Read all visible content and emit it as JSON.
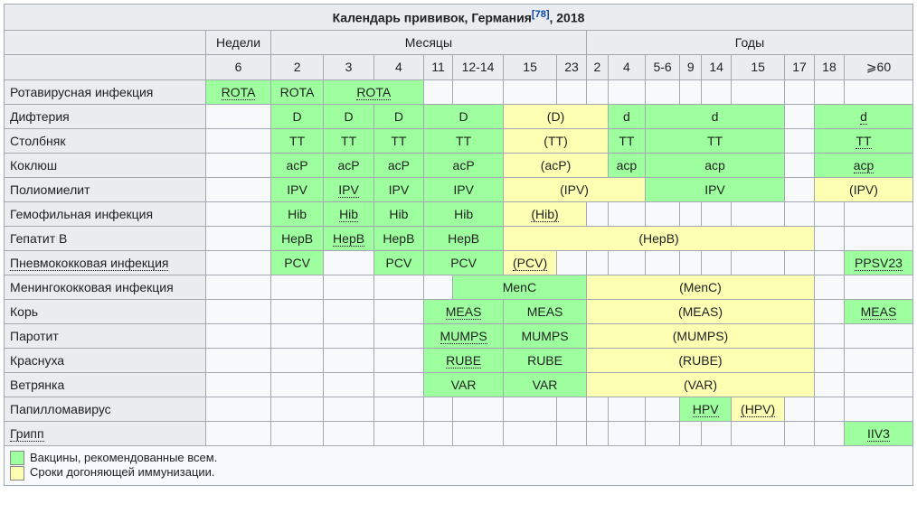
{
  "title": {
    "prefix": "Календарь прививок, Германия",
    "ref": "[78]",
    "ref_link": true,
    "suffix": ", 2018"
  },
  "headers": {
    "weeks": "Недели",
    "months": "Месяцы",
    "years": "Годы",
    "week_cols": [
      "6"
    ],
    "month_cols": [
      "2",
      "3",
      "4",
      "11",
      "12-14",
      "15",
      "23"
    ],
    "year_cols": [
      "2",
      "4",
      "5-6",
      "9",
      "14",
      "15",
      "17",
      "18",
      "⩾60"
    ]
  },
  "colors": {
    "green": "#9EFF9E",
    "yellow": "#FDFFB3",
    "header_bg": "#eaecf0",
    "table_bg": "#f8f9fa",
    "border": "#a2a9b1"
  },
  "legend": {
    "green": "Вакцины, рекомендованные всем.",
    "yellow": "Сроки догоняющей иммунизации."
  },
  "rows": [
    {
      "label": "Ротавирусная инфекция",
      "label_dotted": false,
      "cells": [
        {
          "text": "ROTA",
          "cls": "c-green",
          "span": 1,
          "dotted": true
        },
        {
          "text": "ROTA",
          "cls": "c-green",
          "span": 1
        },
        {
          "text": "ROTA",
          "cls": "c-green",
          "span": 2,
          "dotted": true
        },
        {
          "text": "",
          "cls": "",
          "span": 1
        },
        {
          "text": "",
          "cls": "",
          "span": 1
        },
        {
          "text": "",
          "cls": "",
          "span": 1
        },
        {
          "text": "",
          "cls": "",
          "span": 1
        },
        {
          "text": "",
          "cls": "",
          "span": 1
        },
        {
          "text": "",
          "cls": "",
          "span": 1
        },
        {
          "text": "",
          "cls": "",
          "span": 1
        },
        {
          "text": "",
          "cls": "",
          "span": 1
        },
        {
          "text": "",
          "cls": "",
          "span": 1
        },
        {
          "text": "",
          "cls": "",
          "span": 1
        },
        {
          "text": "",
          "cls": "",
          "span": 1
        },
        {
          "text": "",
          "cls": "",
          "span": 1
        },
        {
          "text": "",
          "cls": "",
          "span": 1
        }
      ]
    },
    {
      "label": "Дифтерия",
      "label_dotted": false,
      "cells": [
        {
          "text": "",
          "cls": "",
          "span": 1
        },
        {
          "text": "D",
          "cls": "c-green",
          "span": 1
        },
        {
          "text": "D",
          "cls": "c-green",
          "span": 1
        },
        {
          "text": "D",
          "cls": "c-green",
          "span": 1
        },
        {
          "text": "D",
          "cls": "c-green",
          "span": 2
        },
        {
          "text": "(D)",
          "cls": "c-yellow",
          "span": 3
        },
        {
          "text": "d",
          "cls": "c-green",
          "span": 1
        },
        {
          "text": "d",
          "cls": "c-green",
          "span": 4
        },
        {
          "text": "",
          "cls": "",
          "span": 1
        },
        {
          "text": "d",
          "cls": "c-green",
          "span": 2,
          "dotted": true
        }
      ]
    },
    {
      "label": "Столбняк",
      "label_dotted": false,
      "cells": [
        {
          "text": "",
          "cls": "",
          "span": 1
        },
        {
          "text": "TT",
          "cls": "c-green",
          "span": 1
        },
        {
          "text": "TT",
          "cls": "c-green",
          "span": 1
        },
        {
          "text": "TT",
          "cls": "c-green",
          "span": 1
        },
        {
          "text": "TT",
          "cls": "c-green",
          "span": 2
        },
        {
          "text": "(TT)",
          "cls": "c-yellow",
          "span": 3
        },
        {
          "text": "TT",
          "cls": "c-green",
          "span": 1
        },
        {
          "text": "TT",
          "cls": "c-green",
          "span": 4
        },
        {
          "text": "",
          "cls": "",
          "span": 1
        },
        {
          "text": "TT",
          "cls": "c-green",
          "span": 2,
          "dotted": true
        }
      ]
    },
    {
      "label": "Коклюш",
      "label_dotted": false,
      "cells": [
        {
          "text": "",
          "cls": "",
          "span": 1
        },
        {
          "text": "acP",
          "cls": "c-green",
          "span": 1
        },
        {
          "text": "acP",
          "cls": "c-green",
          "span": 1
        },
        {
          "text": "acP",
          "cls": "c-green",
          "span": 1
        },
        {
          "text": "acP",
          "cls": "c-green",
          "span": 2
        },
        {
          "text": "(acP)",
          "cls": "c-yellow",
          "span": 3
        },
        {
          "text": "acp",
          "cls": "c-green",
          "span": 1
        },
        {
          "text": "acp",
          "cls": "c-green",
          "span": 4
        },
        {
          "text": "",
          "cls": "",
          "span": 1
        },
        {
          "text": "acp",
          "cls": "c-green",
          "span": 2,
          "dotted": true
        }
      ]
    },
    {
      "label": "Полиомиелит",
      "label_dotted": false,
      "cells": [
        {
          "text": "",
          "cls": "",
          "span": 1
        },
        {
          "text": "IPV",
          "cls": "c-green",
          "span": 1
        },
        {
          "text": "IPV",
          "cls": "c-green",
          "span": 1,
          "dotted": true
        },
        {
          "text": "IPV",
          "cls": "c-green",
          "span": 1
        },
        {
          "text": "IPV",
          "cls": "c-green",
          "span": 2
        },
        {
          "text": "(IPV)",
          "cls": "c-yellow",
          "span": 4
        },
        {
          "text": "IPV",
          "cls": "c-green",
          "span": 4
        },
        {
          "text": "",
          "cls": "",
          "span": 1
        },
        {
          "text": "(IPV)",
          "cls": "c-yellow",
          "span": 2
        }
      ]
    },
    {
      "label": "Гемофильная инфекция",
      "label_dotted": false,
      "cells": [
        {
          "text": "",
          "cls": "",
          "span": 1
        },
        {
          "text": "Hib",
          "cls": "c-green",
          "span": 1
        },
        {
          "text": "Hib",
          "cls": "c-green",
          "span": 1,
          "dotted": true
        },
        {
          "text": "Hib",
          "cls": "c-green",
          "span": 1
        },
        {
          "text": "Hib",
          "cls": "c-green",
          "span": 2
        },
        {
          "text": "(Hib)",
          "cls": "c-yellow",
          "span": 2,
          "dotted": true
        },
        {
          "text": "",
          "cls": "",
          "span": 1
        },
        {
          "text": "",
          "cls": "",
          "span": 1
        },
        {
          "text": "",
          "cls": "",
          "span": 1
        },
        {
          "text": "",
          "cls": "",
          "span": 1
        },
        {
          "text": "",
          "cls": "",
          "span": 1
        },
        {
          "text": "",
          "cls": "",
          "span": 1
        },
        {
          "text": "",
          "cls": "",
          "span": 1
        },
        {
          "text": "",
          "cls": "",
          "span": 1
        },
        {
          "text": "",
          "cls": "",
          "span": 1
        }
      ]
    },
    {
      "label": "Гепатит B",
      "label_dotted": false,
      "cells": [
        {
          "text": "",
          "cls": "",
          "span": 1
        },
        {
          "text": "HepB",
          "cls": "c-green",
          "span": 1
        },
        {
          "text": "HepB",
          "cls": "c-green",
          "span": 1,
          "dotted": true
        },
        {
          "text": "HepB",
          "cls": "c-green",
          "span": 1
        },
        {
          "text": "HepB",
          "cls": "c-green",
          "span": 2
        },
        {
          "text": "(HepB)",
          "cls": "c-yellow",
          "span": 9
        },
        {
          "text": "",
          "cls": "",
          "span": 1
        },
        {
          "text": "",
          "cls": "",
          "span": 1
        }
      ]
    },
    {
      "label": "Пневмококковая инфекция",
      "label_dotted": true,
      "cells": [
        {
          "text": "",
          "cls": "",
          "span": 1
        },
        {
          "text": "PCV",
          "cls": "c-green",
          "span": 1
        },
        {
          "text": "",
          "cls": "",
          "span": 1
        },
        {
          "text": "PCV",
          "cls": "c-green",
          "span": 1
        },
        {
          "text": "PCV",
          "cls": "c-green",
          "span": 2
        },
        {
          "text": "(PCV)",
          "cls": "c-yellow",
          "span": 1,
          "dotted": true
        },
        {
          "text": "",
          "cls": "",
          "span": 1
        },
        {
          "text": "",
          "cls": "",
          "span": 1
        },
        {
          "text": "",
          "cls": "",
          "span": 1
        },
        {
          "text": "",
          "cls": "",
          "span": 1
        },
        {
          "text": "",
          "cls": "",
          "span": 1
        },
        {
          "text": "",
          "cls": "",
          "span": 1
        },
        {
          "text": "",
          "cls": "",
          "span": 1
        },
        {
          "text": "",
          "cls": "",
          "span": 1
        },
        {
          "text": "",
          "cls": "",
          "span": 1
        },
        {
          "text": "PPSV23",
          "cls": "c-green",
          "span": 1,
          "dotted": true
        }
      ]
    },
    {
      "label": "Менингококковая инфекция",
      "label_dotted": false,
      "cells": [
        {
          "text": "",
          "cls": "",
          "span": 1
        },
        {
          "text": "",
          "cls": "",
          "span": 1
        },
        {
          "text": "",
          "cls": "",
          "span": 1
        },
        {
          "text": "",
          "cls": "",
          "span": 1
        },
        {
          "text": "",
          "cls": "",
          "span": 1
        },
        {
          "text": "MenC",
          "cls": "c-green",
          "span": 3
        },
        {
          "text": "(MenC)",
          "cls": "c-yellow",
          "span": 7
        },
        {
          "text": "",
          "cls": "",
          "span": 1
        },
        {
          "text": "",
          "cls": "",
          "span": 1
        }
      ]
    },
    {
      "label": "Корь",
      "label_dotted": false,
      "cells": [
        {
          "text": "",
          "cls": "",
          "span": 1
        },
        {
          "text": "",
          "cls": "",
          "span": 1
        },
        {
          "text": "",
          "cls": "",
          "span": 1
        },
        {
          "text": "",
          "cls": "",
          "span": 1
        },
        {
          "text": "MEAS",
          "cls": "c-green",
          "span": 2,
          "dotted": true
        },
        {
          "text": "MEAS",
          "cls": "c-green",
          "span": 2
        },
        {
          "text": "(MEAS)",
          "cls": "c-yellow",
          "span": 7
        },
        {
          "text": "",
          "cls": "",
          "span": 1
        },
        {
          "text": "MEAS",
          "cls": "c-green",
          "span": 1,
          "dotted": true
        }
      ]
    },
    {
      "label": "Паротит",
      "label_dotted": false,
      "cells": [
        {
          "text": "",
          "cls": "",
          "span": 1
        },
        {
          "text": "",
          "cls": "",
          "span": 1
        },
        {
          "text": "",
          "cls": "",
          "span": 1
        },
        {
          "text": "",
          "cls": "",
          "span": 1
        },
        {
          "text": "MUMPS",
          "cls": "c-green",
          "span": 2,
          "dotted": true
        },
        {
          "text": "MUMPS",
          "cls": "c-green",
          "span": 2
        },
        {
          "text": "(MUMPS)",
          "cls": "c-yellow",
          "span": 7
        },
        {
          "text": "",
          "cls": "",
          "span": 1
        },
        {
          "text": "",
          "cls": "",
          "span": 1
        }
      ]
    },
    {
      "label": "Краснуха",
      "label_dotted": false,
      "cells": [
        {
          "text": "",
          "cls": "",
          "span": 1
        },
        {
          "text": "",
          "cls": "",
          "span": 1
        },
        {
          "text": "",
          "cls": "",
          "span": 1
        },
        {
          "text": "",
          "cls": "",
          "span": 1
        },
        {
          "text": "RUBE",
          "cls": "c-green",
          "span": 2,
          "dotted": true
        },
        {
          "text": "RUBE",
          "cls": "c-green",
          "span": 2
        },
        {
          "text": "(RUBE)",
          "cls": "c-yellow",
          "span": 7
        },
        {
          "text": "",
          "cls": "",
          "span": 1
        },
        {
          "text": "",
          "cls": "",
          "span": 1
        }
      ]
    },
    {
      "label": "Ветрянка",
      "label_dotted": false,
      "cells": [
        {
          "text": "",
          "cls": "",
          "span": 1
        },
        {
          "text": "",
          "cls": "",
          "span": 1
        },
        {
          "text": "",
          "cls": "",
          "span": 1
        },
        {
          "text": "",
          "cls": "",
          "span": 1
        },
        {
          "text": "VAR",
          "cls": "c-green",
          "span": 2
        },
        {
          "text": "VAR",
          "cls": "c-green",
          "span": 2
        },
        {
          "text": "(VAR)",
          "cls": "c-yellow",
          "span": 7
        },
        {
          "text": "",
          "cls": "",
          "span": 1
        },
        {
          "text": "",
          "cls": "",
          "span": 1
        }
      ]
    },
    {
      "label": "Папилломавирус",
      "label_dotted": false,
      "cells": [
        {
          "text": "",
          "cls": "",
          "span": 1
        },
        {
          "text": "",
          "cls": "",
          "span": 1
        },
        {
          "text": "",
          "cls": "",
          "span": 1
        },
        {
          "text": "",
          "cls": "",
          "span": 1
        },
        {
          "text": "",
          "cls": "",
          "span": 1
        },
        {
          "text": "",
          "cls": "",
          "span": 1
        },
        {
          "text": "",
          "cls": "",
          "span": 1
        },
        {
          "text": "",
          "cls": "",
          "span": 1
        },
        {
          "text": "",
          "cls": "",
          "span": 1
        },
        {
          "text": "",
          "cls": "",
          "span": 1
        },
        {
          "text": "",
          "cls": "",
          "span": 1
        },
        {
          "text": "HPV",
          "cls": "c-green",
          "span": 2,
          "dotted": true
        },
        {
          "text": "(HPV)",
          "cls": "c-yellow",
          "span": 1,
          "dotted": true
        },
        {
          "text": "",
          "cls": "",
          "span": 1
        },
        {
          "text": "",
          "cls": "",
          "span": 1
        },
        {
          "text": "",
          "cls": "",
          "span": 1
        }
      ]
    },
    {
      "label": "Грипп",
      "label_dotted": true,
      "cells": [
        {
          "text": "",
          "cls": "",
          "span": 1
        },
        {
          "text": "",
          "cls": "",
          "span": 1
        },
        {
          "text": "",
          "cls": "",
          "span": 1
        },
        {
          "text": "",
          "cls": "",
          "span": 1
        },
        {
          "text": "",
          "cls": "",
          "span": 1
        },
        {
          "text": "",
          "cls": "",
          "span": 1
        },
        {
          "text": "",
          "cls": "",
          "span": 1
        },
        {
          "text": "",
          "cls": "",
          "span": 1
        },
        {
          "text": "",
          "cls": "",
          "span": 1
        },
        {
          "text": "",
          "cls": "",
          "span": 1
        },
        {
          "text": "",
          "cls": "",
          "span": 1
        },
        {
          "text": "",
          "cls": "",
          "span": 1
        },
        {
          "text": "",
          "cls": "",
          "span": 1
        },
        {
          "text": "",
          "cls": "",
          "span": 1
        },
        {
          "text": "",
          "cls": "",
          "span": 1
        },
        {
          "text": "",
          "cls": "",
          "span": 1
        },
        {
          "text": "IIV3",
          "cls": "c-green",
          "span": 1,
          "dotted": true
        }
      ]
    }
  ]
}
